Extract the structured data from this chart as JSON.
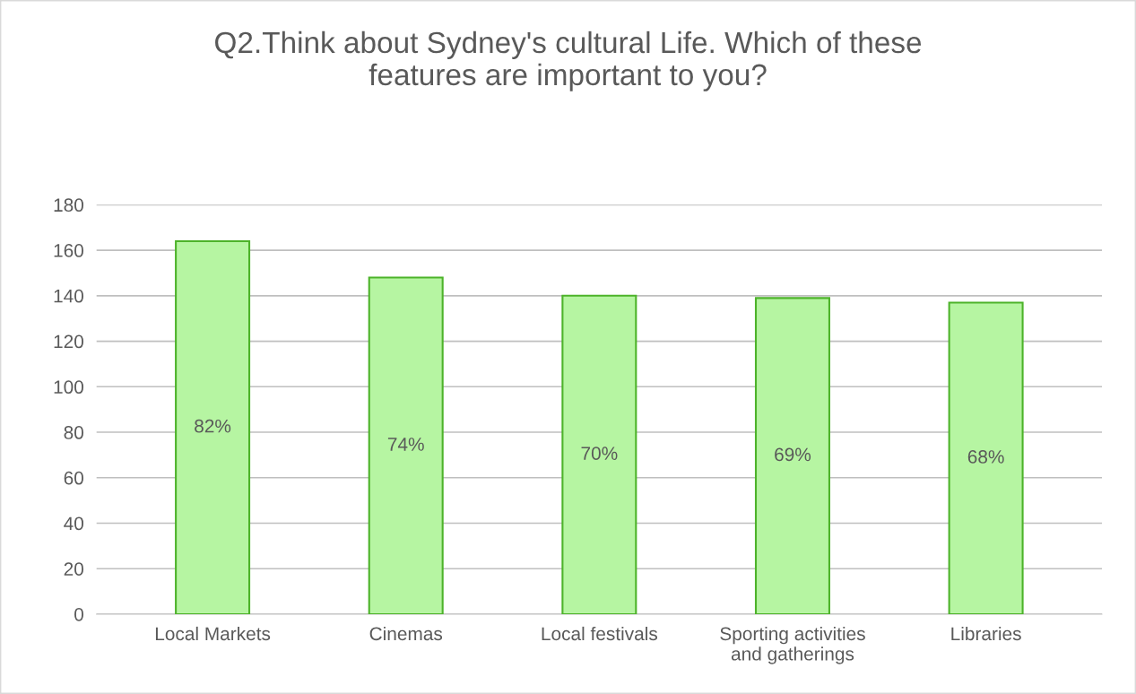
{
  "chart_data": {
    "type": "bar",
    "title": "Q2.Think about Sydney's cultural Life. Which of these\nfeatures are important to you?",
    "categories": [
      "Local Markets",
      "Cinemas",
      "Local festivals",
      "Sporting activities\nand gatherings",
      "Libraries"
    ],
    "values": [
      164,
      148,
      140,
      139,
      137
    ],
    "annotations": [
      "82%",
      "74%",
      "70%",
      "69%",
      "68%"
    ],
    "color": "#b6f5a2",
    "ylim": [
      0,
      180
    ],
    "yticks": [
      0,
      20,
      40,
      60,
      80,
      100,
      120,
      140,
      160,
      180
    ],
    "grid": "y"
  }
}
